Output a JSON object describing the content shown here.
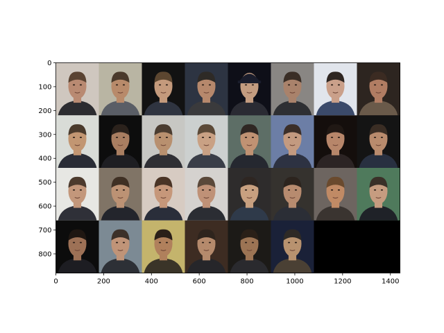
{
  "figure": {
    "x_ticks": [
      "0",
      "200",
      "400",
      "600",
      "800",
      "1000",
      "1200",
      "1400"
    ],
    "y_ticks": [
      "0",
      "100",
      "200",
      "300",
      "400",
      "500",
      "600",
      "700",
      "800"
    ],
    "x_tick_values": [
      0,
      200,
      400,
      600,
      800,
      1000,
      1200,
      1400
    ],
    "y_tick_values": [
      0,
      100,
      200,
      300,
      400,
      500,
      600,
      700,
      800
    ],
    "image_extent_x": [
      0,
      1440
    ],
    "image_extent_y": [
      0,
      880
    ],
    "grid_rows": 4,
    "grid_cols": 8,
    "empty_tile_color": "#000000",
    "tiles": [
      {
        "bg": "#cfc7bf",
        "skin": "#b98a72",
        "hair": "#5a4332",
        "shirt": "#2c2c30",
        "hat": false
      },
      {
        "bg": "#b9b5a3",
        "skin": "#b88a6a",
        "hair": "#4a3a2b",
        "shirt": "#5a5e66",
        "hat": false
      },
      {
        "bg": "#121212",
        "skin": "#c49a7c",
        "hair": "#5c4630",
        "shirt": "#2f3440",
        "hat": false
      },
      {
        "bg": "#2d3442",
        "skin": "#b6886c",
        "hair": "#2e2a26",
        "shirt": "#3a3a3c",
        "hat": false
      },
      {
        "bg": "#0e0f18",
        "skin": "#c39c80",
        "hair": "#1a1d2c",
        "shirt": "#2a2b33",
        "hat": true
      },
      {
        "bg": "#898683",
        "skin": "#a9826b",
        "hair": "#3a2e26",
        "shirt": "#2e2f33",
        "hat": false
      },
      {
        "bg": "#e1e5ec",
        "skin": "#caa08a",
        "hair": "#2e2622",
        "shirt": "#3b4a6a",
        "hat": false
      },
      {
        "bg": "#2d2520",
        "skin": "#b17d63",
        "hair": "#3b2b22",
        "shirt": "#6a5a4a",
        "hat": false
      },
      {
        "bg": "#d9dcd7",
        "skin": "#c29672",
        "hair": "#4a3a2c",
        "shirt": "#2a2d36",
        "hat": false
      },
      {
        "bg": "#0d0d0d",
        "skin": "#a97e61",
        "hair": "#2b221c",
        "shirt": "#1e1e22",
        "hat": false
      },
      {
        "bg": "#c7c7c3",
        "skin": "#b8906f",
        "hair": "#4a3c30",
        "shirt": "#2f2f34",
        "hat": false
      },
      {
        "bg": "#ccd0cf",
        "skin": "#c9a184",
        "hair": "#5c4a38",
        "shirt": "#3a3e48",
        "hat": false
      },
      {
        "bg": "#5d6e66",
        "skin": "#c09273",
        "hair": "#2f2723",
        "shirt": "#252830",
        "hat": false
      },
      {
        "bg": "#6c7ea6",
        "skin": "#c39a80",
        "hair": "#3b2e28",
        "shirt": "#2d3242",
        "hat": false
      },
      {
        "bg": "#140e0c",
        "skin": "#b7866a",
        "hair": "#201814",
        "shirt": "#2c2424",
        "hat": false
      },
      {
        "bg": "#141414",
        "skin": "#b98b6d",
        "hair": "#3a2d24",
        "shirt": "#283040",
        "hat": false
      },
      {
        "bg": "#e7e7e3",
        "skin": "#c3977b",
        "hair": "#4c3a2d",
        "shirt": "#2f3038",
        "hat": false
      },
      {
        "bg": "#807466",
        "skin": "#bc9274",
        "hair": "#3f3024",
        "shirt": "#23252c",
        "hat": false
      },
      {
        "bg": "#d7cbc2",
        "skin": "#c6977a",
        "hair": "#4a3426",
        "shirt": "#2a2e3a",
        "hat": false
      },
      {
        "bg": "#d5d2cf",
        "skin": "#bf9177",
        "hair": "#5a483a",
        "shirt": "#2b2d33",
        "hat": false
      },
      {
        "bg": "#2e2c2c",
        "skin": "#c8a080",
        "hair": "#2e2622",
        "shirt": "#2f3a4a",
        "hat": false
      },
      {
        "bg": "#35322e",
        "skin": "#b78b6f",
        "hair": "#2c241e",
        "shirt": "#2b2e36",
        "hat": false
      },
      {
        "bg": "#6d6560",
        "skin": "#c08a65",
        "hair": "#6a4a2e",
        "shirt": "#3a3430",
        "hat": false
      },
      {
        "bg": "#4f7a5c",
        "skin": "#c69c80",
        "hair": "#3a3028",
        "shirt": "#1f2228",
        "hat": false
      },
      {
        "bg": "#0c0c0c",
        "skin": "#9d7156",
        "hair": "#1f1712",
        "shirt": "#1d1d22",
        "hat": false
      },
      {
        "bg": "#7c8a94",
        "skin": "#c09478",
        "hair": "#3c3028",
        "shirt": "#2d3036",
        "hat": false
      },
      {
        "bg": "#c4b46c",
        "skin": "#b0805c",
        "hair": "#2a1f18",
        "shirt": "#3a3428",
        "hat": false
      },
      {
        "bg": "#3d2c22",
        "skin": "#b58a6c",
        "hair": "#2e241d",
        "shirt": "#26262a",
        "hat": false
      },
      {
        "bg": "#1c1a17",
        "skin": "#9c7454",
        "hair": "#2a2018",
        "shirt": "#2a2a2e",
        "hat": false
      },
      {
        "bg": "#1a2138",
        "skin": "#b8926f",
        "hair": "#2e2a26",
        "shirt": "#4a4034",
        "hat": false
      }
    ]
  }
}
